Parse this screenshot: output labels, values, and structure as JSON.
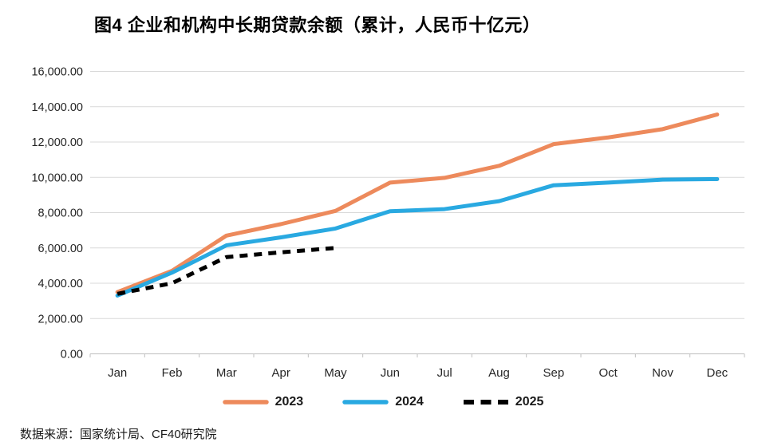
{
  "title": "图4 企业和机构中长期贷款余额（累计，人民币十亿元）",
  "source_note": "数据来源：国家统计局、CF40研究院",
  "colors": {
    "grid": "#D9D9D9",
    "axis": "#BFBFBF",
    "tick_text": "#262626",
    "background": "#FFFFFF"
  },
  "chart_data": {
    "type": "line",
    "title": "图4 企业和机构中长期贷款余额（累计，人民币十亿元）",
    "xlabel": "",
    "ylabel": "",
    "categories": [
      "Jan",
      "Feb",
      "Mar",
      "Apr",
      "May",
      "Jun",
      "Jul",
      "Aug",
      "Sep",
      "Oct",
      "Nov",
      "Dec"
    ],
    "series": [
      {
        "name": "2023",
        "color": "#ED8A5C",
        "dash": false,
        "values": [
          3500,
          4700,
          6700,
          7350,
          8100,
          9700,
          9970,
          10650,
          11880,
          12260,
          12730,
          13560
        ]
      },
      {
        "name": "2024",
        "color": "#29A9E1",
        "dash": false,
        "values": [
          3300,
          4600,
          6150,
          6600,
          7100,
          8080,
          8200,
          8650,
          9550,
          9700,
          9870,
          9900
        ]
      },
      {
        "name": "2025",
        "color": "#000000",
        "dash": true,
        "values": [
          3400,
          4000,
          5480,
          5750,
          6000
        ]
      }
    ],
    "ylim": [
      0,
      16000
    ],
    "y_tick_step": 2000,
    "y_tick_labels": [
      "0.00",
      "2,000.00",
      "4,000.00",
      "6,000.00",
      "8,000.00",
      "10,000.00",
      "12,000.00",
      "14,000.00",
      "16,000.00"
    ],
    "grid": true,
    "legend_position": "bottom"
  }
}
